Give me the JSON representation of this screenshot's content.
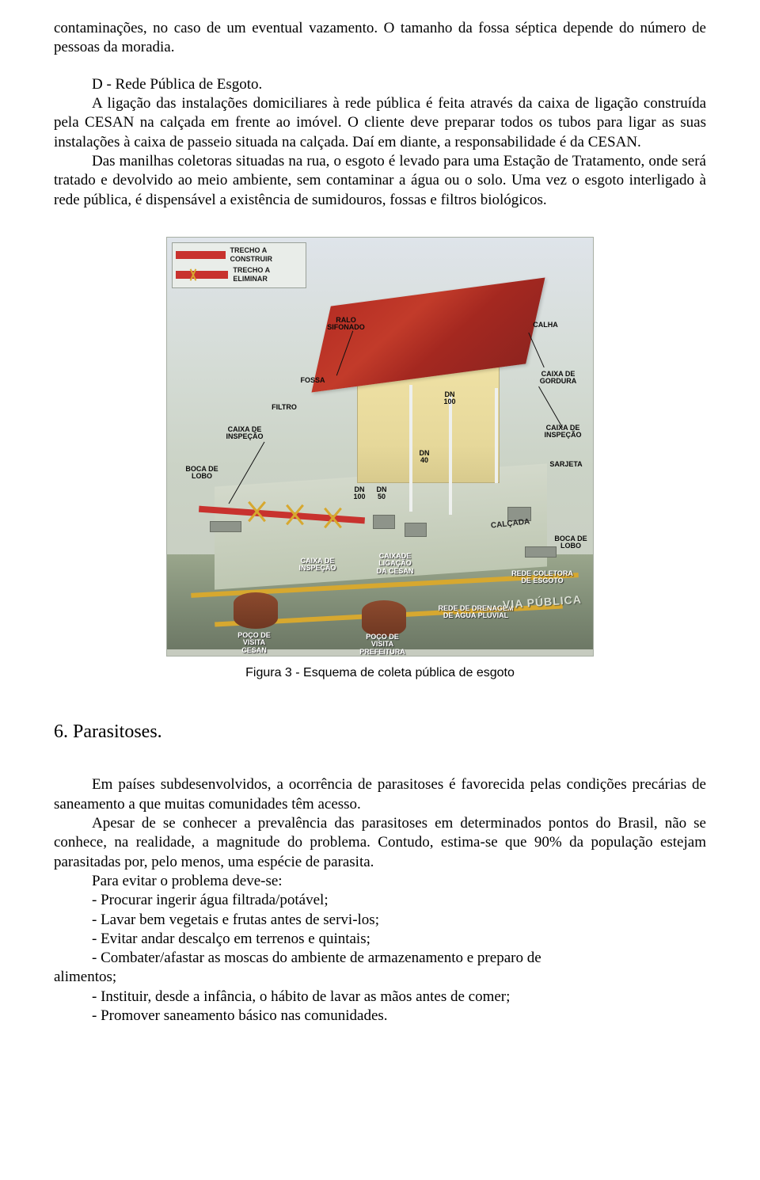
{
  "intro": {
    "p1": "contaminações, no caso de um eventual vazamento. O tamanho da fossa séptica depende do número de pessoas da moradia.",
    "heading_d": "D - Rede Pública de Esgoto.",
    "p2": "A ligação das instalações domiciliares à rede pública é feita através da caixa de ligação construída pela CESAN na calçada em frente ao imóvel. O cliente deve preparar todos os tubos para ligar as suas instalações à caixa de passeio situada na calçada. Daí em diante, a responsabilidade é da CESAN.",
    "p3": "Das manilhas coletoras situadas na rua, o esgoto é levado para uma Estação de Tratamento, onde será tratado e devolvido ao meio ambiente, sem contaminar a água ou o solo. Uma vez o esgoto interligado à rede pública, é dispensável a existência de sumidouros, fossas e filtros biológicos."
  },
  "figure": {
    "legend_construir": "TRECHO A CONSTRUIR",
    "legend_eliminar": "TRECHO A ELIMINAR",
    "labels": {
      "ralo_sifonado": "RALO\nSIFONADO",
      "fossa": "FOSSA",
      "filtro": "FILTRO",
      "caixa_inspecao": "CAIXA DE\nINSPEÇÃO",
      "boca_lobo": "BOCA DE\nLOBO",
      "calha": "CALHA",
      "caixa_gordura": "CAIXA DE\nGORDURA",
      "caixa_inspecao2": "CAIXA DE\nINSPEÇÃO",
      "sarjeta": "SARJETA",
      "dn100": "DN\n100",
      "dn50": "DN\n50",
      "dn40": "DN\n40",
      "dn100b": "DN\n100",
      "calcada": "CALÇADA",
      "boca_lobo2": "BOCA DE\nLOBO",
      "caixa_inspecao3": "CAIXA DE\nINSPEÇÃO",
      "caixa_ligacao_cesan": "CAIXADE\nLIGAÇÃO\nDA CESAN",
      "rede_coletora": "REDE COLETORA\nDE ESGOTO",
      "poco_cesan": "POÇO DE\nVISITA\nCESAN",
      "poco_prefeitura": "POÇO DE\nVISITA\nPREFEITURA",
      "rede_drenagem": "REDE DE DRENAGEM\nDE ÁGUA PLUVIAL",
      "via_publica": "VIA PÚBLICA"
    },
    "caption": "Figura 3 - Esquema de coleta pública de esgoto",
    "colors": {
      "roof": "#b62e24",
      "wall": "#e6d89a",
      "red_pipe": "#c8322e",
      "yellow": "#d7a82f",
      "ground": "#c6cbbf",
      "street": "#7d8a74"
    }
  },
  "section6": {
    "title": "6. Parasitoses.",
    "p1": "Em países subdesenvolvidos, a ocorrência de parasitoses é favorecida pelas condições precárias de saneamento a que muitas comunidades têm acesso.",
    "p2": "Apesar de se conhecer a prevalência das parasitoses em determinados pontos do Brasil, não se conhece, na realidade, a magnitude do problema. Contudo, estima-se que 90% da população estejam parasitadas por, pelo menos, uma espécie de parasita.",
    "lead": "Para evitar o problema deve-se:",
    "items": [
      "- Procurar ingerir água filtrada/potável;",
      "- Lavar bem vegetais e frutas antes de servi-los;",
      "- Evitar andar descalço em terrenos e quintais;",
      "- Combater/afastar as moscas do ambiente de armazenamento e preparo de",
      "- Instituir, desde a infância, o hábito de lavar as mãos antes de comer;",
      "- Promover saneamento básico nas comunidades."
    ],
    "cont": "alimentos;"
  }
}
